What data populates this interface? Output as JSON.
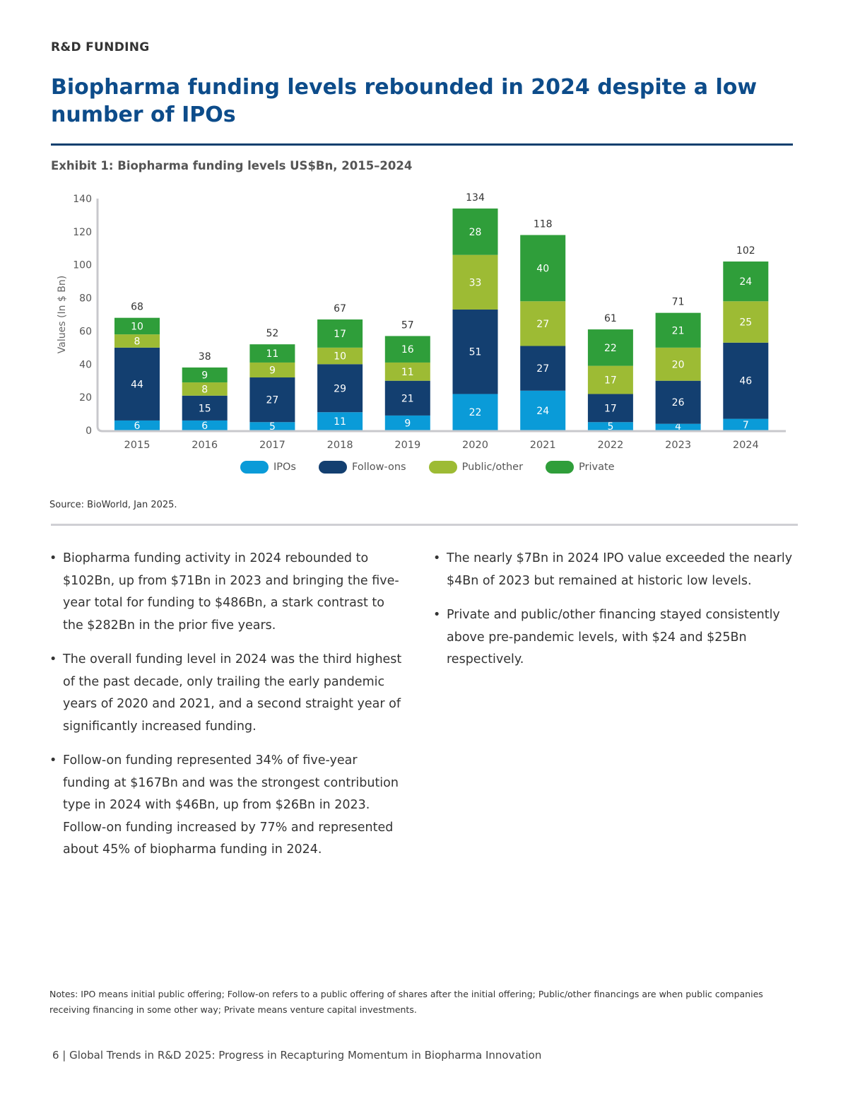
{
  "header": {
    "section": "R&D FUNDING",
    "title": "Biopharma funding levels rebounded in 2024 despite a low number of IPOs"
  },
  "exhibit_title": "Exhibit 1: Biopharma funding levels US$Bn, 2015–2024",
  "colors": {
    "IPOs": "#0a9bd8",
    "Follow-ons": "#133f70",
    "Public/other": "#9dbb34",
    "Private": "#2f9e3a"
  },
  "chart_data": {
    "type": "bar",
    "stacked": true,
    "title": "Exhibit 1: Biopharma funding levels US$Bn, 2015–2024",
    "xlabel": "",
    "ylabel": "Values (In $ Bn)",
    "ylim": [
      0,
      140
    ],
    "yticks": [
      "0",
      "20",
      "40",
      "60",
      "80",
      "100",
      "120",
      "140"
    ],
    "categories": [
      "2015",
      "2016",
      "2017",
      "2018",
      "2019",
      "2020",
      "2021",
      "2022",
      "2023",
      "2024"
    ],
    "series": [
      {
        "name": "IPOs",
        "values": [
          6,
          6,
          5,
          11,
          9,
          22,
          24,
          5,
          4,
          7
        ]
      },
      {
        "name": "Follow-ons",
        "values": [
          44,
          15,
          27,
          29,
          21,
          51,
          27,
          17,
          26,
          46
        ]
      },
      {
        "name": "Public/other",
        "values": [
          8,
          8,
          9,
          10,
          11,
          33,
          27,
          17,
          20,
          25
        ]
      },
      {
        "name": "Private",
        "values": [
          10,
          9,
          11,
          17,
          16,
          28,
          40,
          22,
          21,
          24
        ]
      }
    ],
    "totals": [
      68,
      38,
      52,
      67,
      57,
      134,
      118,
      61,
      71,
      102
    ],
    "legend": "bottom",
    "grid": false
  },
  "source": "Source: BioWorld, Jan 2025.",
  "bullets_left": [
    "Biopharma funding activity in 2024 rebounded to $102Bn, up from $71Bn in 2023 and bringing the five-year total for funding to $486Bn, a stark contrast to the $282Bn in the prior five years.",
    "The overall funding level in 2024 was the third highest of the past decade, only trailing the early pandemic years of 2020 and 2021, and a second straight year of significantly increased funding.",
    "Follow-on funding represented 34% of five-year funding at $167Bn and was the strongest contribution type in 2024 with $46Bn, up from $26Bn in 2023. Follow-on funding increased by 77% and represented about 45% of biopharma funding in 2024."
  ],
  "bullets_right": [
    "The nearly $7Bn in 2024 IPO value exceeded the nearly $4Bn of 2023 but remained at historic low levels.",
    "Private and public/other financing stayed consistently above pre-pandemic levels, with $24 and $25Bn respectively."
  ],
  "bullet_char": "•",
  "notes": "Notes: IPO means initial public offering; Follow-on refers to a public offering of shares after the initial offering; Public/other financings are when public companies receiving financing in some other way; Private means venture capital investments.",
  "footer": "6  | Global Trends in R&D 2025: Progress in Recapturing Momentum in Biopharma Innovation"
}
